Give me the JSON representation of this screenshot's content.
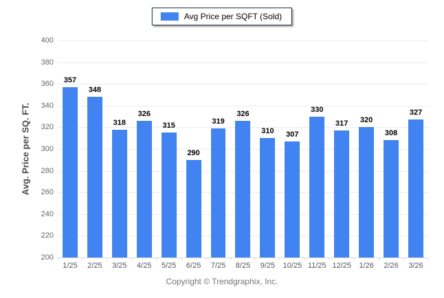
{
  "legend": {
    "label": "Avg Price per SQFT (Sold)"
  },
  "y_axis": {
    "title": "Avg. Price per SQ. FT."
  },
  "footer": {
    "copyright": "Copyright © Trendgraphix, Inc."
  },
  "colors": {
    "bar": "#4183f0",
    "grid": "#ececec",
    "baseline": "#d9d9d9",
    "tick": "#d9d9d9",
    "y_tick_label": "#66665f",
    "x_tick_label": "#55555e",
    "value_label": "#000000",
    "legend_border": "#1c2b4a",
    "y_title": "#47474f",
    "copyright": "#757575"
  },
  "chart_data": {
    "type": "bar",
    "categories": [
      "1/25",
      "2/25",
      "3/25",
      "4/25",
      "5/25",
      "6/25",
      "7/25",
      "8/25",
      "9/25",
      "10/25",
      "11/25",
      "12/25",
      "1/26",
      "2/26",
      "3/26"
    ],
    "values": [
      357,
      348,
      318,
      326,
      315,
      290,
      319,
      326,
      310,
      307,
      330,
      317,
      320,
      308,
      327
    ],
    "title": "",
    "xlabel": "",
    "ylabel": "Avg. Price per SQ. FT.",
    "ylim": [
      200,
      400
    ],
    "ytick_step": 20,
    "grid": true,
    "legend_entries": [
      "Avg Price per SQFT (Sold)"
    ],
    "legend_position": "top",
    "value_labels_shown": true
  }
}
